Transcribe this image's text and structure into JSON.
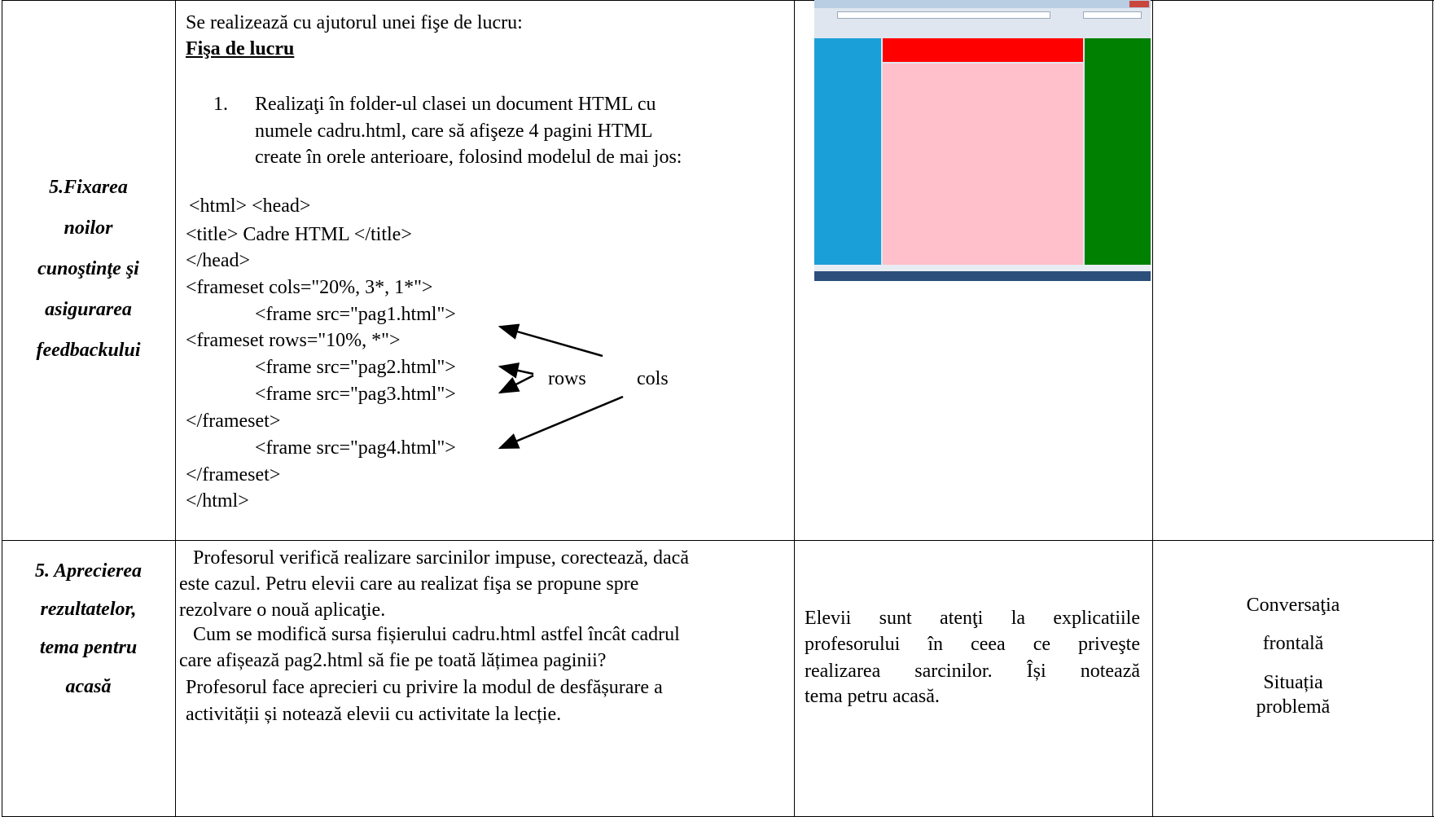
{
  "row1": {
    "stage": [
      "5.Fixarea",
      "noilor",
      "cunoştinţe şi",
      "asigurarea",
      "feedbackului"
    ],
    "intro": "Se realizează cu ajutorul unei fişe de lucru:",
    "worksheet_title": "Fişa de lucru",
    "task": {
      "number": "1.",
      "lines": [
        "Realizaţi în folder-ul clasei un document HTML cu",
        "numele cadru.html, care să afişeze 4 pagini HTML",
        "create în orele anterioare, folosind modelul de mai jos:"
      ]
    },
    "code": [
      "<html> <head>",
      "<title> Cadre HTML </title>",
      "</head>",
      "<frameset cols=\"20%, 3*, 1*\">",
      "<frame src=\"pag1.html\">",
      "<frameset rows=\"10%, *\">",
      "<frame src=\"pag2.html\">",
      "<frame src=\"pag3.html\">",
      "</frameset>",
      "<frame src=\"pag4.html\">",
      "</frameset>",
      "</html>"
    ],
    "labels": {
      "rows": "rows",
      "cols": "cols"
    }
  },
  "row2": {
    "stage": [
      "5. Aprecierea",
      "rezultatelor,",
      "tema pentru",
      "acasă"
    ],
    "teacher": [
      "Profesorul verifică realizare sarcinilor impuse, corectează, dacă",
      "este cazul. Petru elevii care au realizat fişa se propune spre",
      "rezolvare o nouă aplicaţie.",
      "Cum se modifică sursa fișierului cadru.html astfel încât cadrul",
      "care afișează pag2.html să fie pe toată lățimea paginii?",
      "Profesorul face aprecieri cu privire la modul de desfășurare a",
      "activității și notează elevii cu activitate la lecție."
    ],
    "students": [
      "Elevii sunt atenţi la explicatiile",
      "profesorului în ceea ce priveşte",
      "realizarea sarcinilor. Își notează",
      "tema petru acasă."
    ],
    "methods": [
      "Conversaţia",
      "frontală",
      "Situația",
      "problemă"
    ]
  }
}
